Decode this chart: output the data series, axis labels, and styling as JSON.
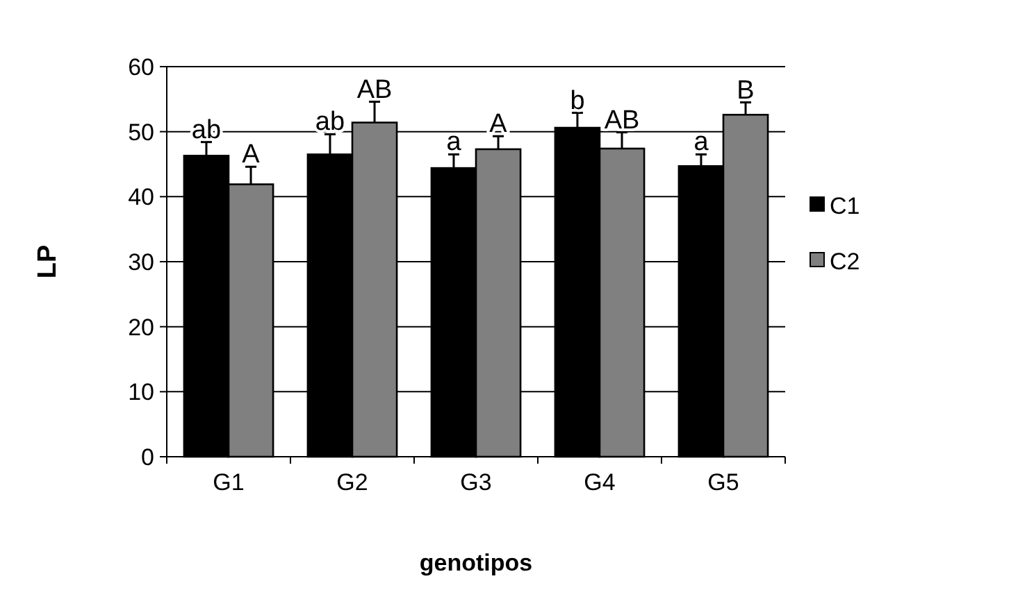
{
  "chart_data": {
    "type": "bar",
    "xlabel": "genotipos",
    "ylabel": "LP",
    "categories": [
      "G1",
      "G2",
      "G3",
      "G4",
      "G5"
    ],
    "series": [
      {
        "name": "C1",
        "color": "#000000",
        "values": [
          46.3,
          46.5,
          44.4,
          50.6,
          44.7
        ],
        "errors": [
          [
            46.3,
            48.4
          ],
          [
            46.5,
            49.6
          ],
          [
            44.4,
            46.5
          ],
          [
            50.6,
            52.9
          ],
          [
            44.7,
            46.5
          ]
        ],
        "value_labels": [
          "ab",
          "ab",
          "a",
          "b",
          "a"
        ]
      },
      {
        "name": "C2",
        "color": "#808080",
        "values": [
          41.9,
          51.4,
          47.3,
          47.4,
          52.6
        ],
        "errors": [
          [
            41.9,
            44.6
          ],
          [
            51.4,
            54.6
          ],
          [
            47.3,
            49.3
          ],
          [
            47.4,
            49.9
          ],
          [
            52.6,
            54.5
          ]
        ],
        "value_labels": [
          "A",
          "AB",
          "A",
          "AB",
          "B"
        ]
      }
    ],
    "ylim": [
      0,
      60
    ],
    "yticks": [
      0,
      10,
      20,
      30,
      40,
      50,
      60
    ],
    "grid": "y",
    "legend": "right"
  }
}
